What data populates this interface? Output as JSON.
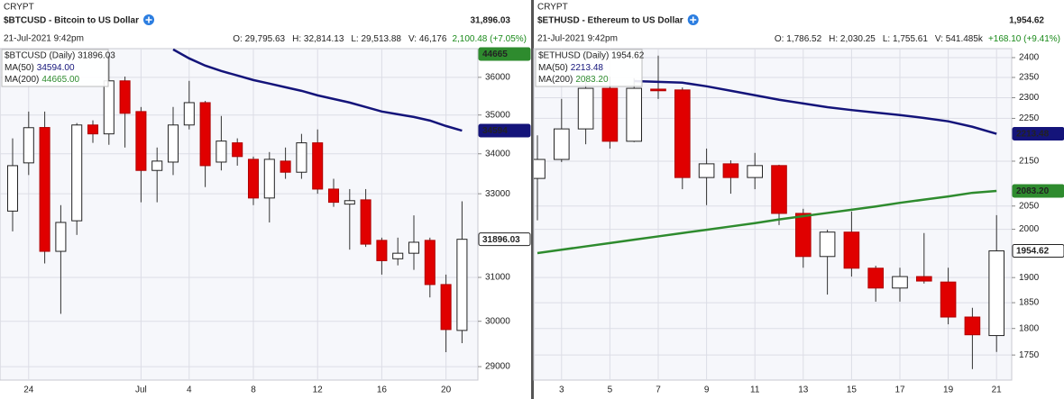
{
  "chart_data": [
    {
      "type": "candlestick",
      "exchange": "CRYPT",
      "title": "$BTCUSD - Bitcoin to US Dollar",
      "price_label": "31,896.03",
      "date": "21-Jul-2021 9:42pm",
      "ohlc_labels": [
        "O: 29,795.63",
        "H: 32,814.13",
        "L: 29,513.88",
        "V: 46,176"
      ],
      "change": "2,100.48 (+7.05%)",
      "symbol_label": "$BTCUSD (Daily) 31896.03",
      "categories": [
        null,
        "24",
        null,
        null,
        null,
        null,
        null,
        null,
        "Jul",
        null,
        null,
        "4",
        null,
        null,
        null,
        "8",
        null,
        null,
        null,
        "12",
        null,
        null,
        null,
        "16",
        null,
        null,
        null,
        "20",
        null
      ],
      "open": [
        32575,
        33770,
        34675,
        31610,
        32340,
        34740,
        34510,
        35905,
        35090,
        33580,
        33790,
        34740,
        35325,
        33790,
        34280,
        33860,
        32895,
        33815,
        33535,
        34280,
        33115,
        32745,
        32850,
        31870,
        31435,
        31565,
        31870,
        30835,
        29795.63
      ],
      "high": [
        34395,
        35090,
        35090,
        32720,
        34790,
        34860,
        36580,
        36020,
        35210,
        34160,
        35210,
        35905,
        35370,
        34975,
        34395,
        33930,
        34045,
        34160,
        34510,
        34625,
        33370,
        33115,
        33115,
        31935,
        31935,
        32470,
        31935,
        31065,
        32814.13
      ],
      "low": [
        32085,
        33465,
        31325,
        30167,
        32000,
        34280,
        34230,
        34160,
        32790,
        32790,
        33465,
        34625,
        33165,
        33580,
        33700,
        32720,
        32300,
        33370,
        33370,
        33000,
        32680,
        31650,
        31715,
        31065,
        31280,
        31175,
        30540,
        29315,
        29513.88
      ],
      "close": [
        33700,
        34670,
        31610,
        32300,
        34740,
        34510,
        35905,
        35045,
        33580,
        33815,
        34740,
        35325,
        33700,
        34325,
        33930,
        32895,
        33860,
        33535,
        34280,
        33115,
        32790,
        32830,
        31780,
        31390,
        31565,
        31825,
        30835,
        29815,
        31896.03
      ],
      "series": [
        {
          "name": "MA(50)",
          "legend_value": "34594.00",
          "color": "#14147a",
          "values": [
            null,
            null,
            null,
            null,
            null,
            null,
            null,
            null,
            null,
            null,
            36759,
            36513,
            36316,
            36170,
            36049,
            35927,
            35831,
            35734,
            35638,
            35518,
            35423,
            35327,
            35209,
            35091,
            35020,
            34949,
            34855,
            34714,
            34594
          ]
        },
        {
          "name": "MA(200)",
          "legend_value": "44665.00",
          "color": "#2e8b2e"
        }
      ],
      "badges": [
        {
          "value": 44665,
          "color": "#2e8b2e"
        },
        {
          "value": 34594,
          "color": "#14147a"
        },
        {
          "value": 31896.03,
          "color": "#ffffff"
        }
      ],
      "ylim": [
        28710,
        36780
      ],
      "yticks": [
        29000,
        30000,
        31000,
        33000,
        34000,
        35000,
        36000
      ],
      "log_scale": true,
      "grid": true,
      "up_color": "#ffffff",
      "down_color": "#e00000"
    },
    {
      "type": "candlestick",
      "exchange": "CRYPT",
      "title": "$ETHUSD - Ethereum to US Dollar",
      "price_label": "1,954.62",
      "date": "21-Jul-2021 9:42pm",
      "ohlc_labels": [
        "O: 1,786.52",
        "H: 2,030.25",
        "L: 1,755.61",
        "V: 541.485k"
      ],
      "change": "+168.10 (+9.41%)",
      "symbol_label": "$ETHUSD (Daily) 1954.62",
      "categories": [
        null,
        "3",
        null,
        "5",
        null,
        "7",
        null,
        "9",
        null,
        "11",
        null,
        "13",
        null,
        "15",
        null,
        "17",
        null,
        "19",
        null,
        "21"
      ],
      "open": [
        2111,
        2154,
        2225,
        2323,
        2196,
        2321,
        2319,
        2113,
        2144,
        2113,
        2140,
        2034,
        1943,
        1994,
        1919,
        1879,
        1902,
        1891,
        1822,
        1786.52
      ],
      "high": [
        2210,
        2297,
        2352,
        2352,
        2348,
        2405,
        2325,
        2179,
        2152,
        2169,
        2142,
        2044,
        1999,
        2038,
        1924,
        1920,
        1992,
        1920,
        1840,
        2030.25
      ],
      "low": [
        2019,
        2148,
        2189,
        2179,
        2194,
        2297,
        2087,
        2052,
        2077,
        2087,
        2009,
        1920,
        1866,
        1902,
        1852,
        1852,
        1888,
        1808,
        1724,
        1755.61
      ],
      "close": [
        2154,
        2225,
        2323,
        2196,
        2323,
        2317,
        2113,
        2144,
        2113,
        2140,
        2034,
        1943,
        1994,
        1919,
        1879,
        1902,
        1893,
        1822,
        1788,
        1954.62
      ],
      "series": [
        {
          "name": "MA(50)",
          "legend_value": "2213.48",
          "color": "#14147a",
          "values": [
            null,
            null,
            null,
            null,
            2341,
            2339,
            2337,
            2328,
            2317,
            2306,
            2295,
            2286,
            2277,
            2270,
            2264,
            2258,
            2251,
            2243,
            2230,
            2213.48
          ]
        },
        {
          "name": "MA(200)",
          "legend_value": "2083.20",
          "color": "#2e8b2e",
          "values": [
            1950,
            1957,
            1964,
            1971,
            1978,
            1985,
            1992,
            1999,
            2006,
            2013,
            2021,
            2028,
            2035,
            2042,
            2049,
            2057,
            2064,
            2071,
            2079,
            2083.2
          ]
        }
      ],
      "badges": [
        {
          "value": 2213.48,
          "color": "#14147a"
        },
        {
          "value": 2083.2,
          "label": "2083.20",
          "color": "#2e8b2e"
        },
        {
          "value": 1954.62,
          "color": "#ffffff"
        }
      ],
      "ylim": [
        1704,
        2423
      ],
      "yticks": [
        1750,
        1800,
        1850,
        1900,
        2000,
        2050,
        2150,
        2250,
        2300,
        2350,
        2400
      ],
      "log_scale": true,
      "grid": true,
      "up_color": "#ffffff",
      "down_color": "#e00000"
    }
  ]
}
